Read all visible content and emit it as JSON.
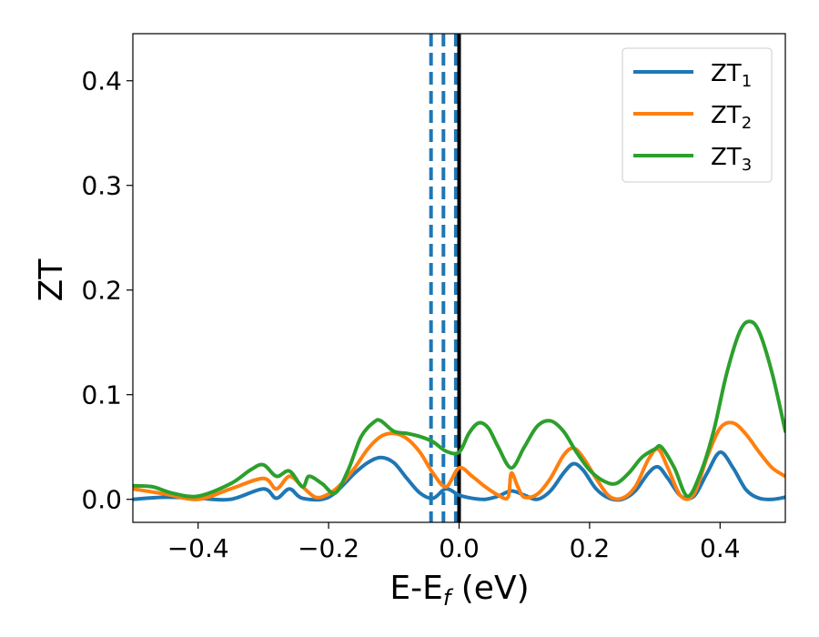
{
  "chart_data": {
    "type": "line",
    "title": "",
    "xlabel": {
      "main": "E-E",
      "sub": "f",
      "tail": " (eV)"
    },
    "ylabel": "ZT",
    "xlim": [
      -0.5,
      0.5
    ],
    "ylim": [
      -0.022,
      0.445
    ],
    "x_ticks": [
      -0.4,
      -0.2,
      0.0,
      0.2,
      0.4
    ],
    "x_tick_labels": [
      "−0.4",
      "−0.2",
      "0.0",
      "0.2",
      "0.4"
    ],
    "y_ticks": [
      0.0,
      0.1,
      0.2,
      0.3,
      0.4
    ],
    "y_tick_labels": [
      "0.0",
      "0.1",
      "0.2",
      "0.3",
      "0.4"
    ],
    "grid": false,
    "legend_position": "top-right",
    "vlines": [
      {
        "x": -0.043,
        "style": "dashed",
        "color": "#1f77b4"
      },
      {
        "x": -0.024,
        "style": "dashed",
        "color": "#1f77b4"
      },
      {
        "x": -0.005,
        "style": "dashed",
        "color": "#1f77b4"
      },
      {
        "x": 0.0,
        "style": "solid",
        "color": "#000000"
      }
    ],
    "series": [
      {
        "name": "ZT",
        "sub": "1",
        "color": "#1f77b4",
        "x": [
          -0.5,
          -0.45,
          -0.4,
          -0.35,
          -0.3,
          -0.28,
          -0.26,
          -0.24,
          -0.2,
          -0.16,
          -0.14,
          -0.12,
          -0.1,
          -0.08,
          -0.06,
          -0.04,
          -0.02,
          0.0,
          0.02,
          0.04,
          0.06,
          0.08,
          0.1,
          0.12,
          0.14,
          0.16,
          0.175,
          0.19,
          0.21,
          0.23,
          0.25,
          0.27,
          0.29,
          0.305,
          0.32,
          0.34,
          0.36,
          0.38,
          0.4,
          0.42,
          0.44,
          0.46,
          0.48,
          0.5
        ],
        "y": [
          0.0,
          0.002,
          0.001,
          0.0,
          0.01,
          0.001,
          0.01,
          0.001,
          0.002,
          0.025,
          0.035,
          0.04,
          0.035,
          0.02,
          0.006,
          0.001,
          0.01,
          0.004,
          0.001,
          0.0,
          0.003,
          0.008,
          0.004,
          0.0,
          0.008,
          0.025,
          0.034,
          0.028,
          0.01,
          0.001,
          0.0,
          0.008,
          0.025,
          0.031,
          0.02,
          0.003,
          0.003,
          0.025,
          0.045,
          0.03,
          0.009,
          0.001,
          0.0,
          0.002
        ]
      },
      {
        "name": "ZT",
        "sub": "2",
        "color": "#ff7f0e",
        "x": [
          -0.5,
          -0.45,
          -0.4,
          -0.35,
          -0.3,
          -0.28,
          -0.26,
          -0.24,
          -0.22,
          -0.2,
          -0.18,
          -0.16,
          -0.14,
          -0.12,
          -0.1,
          -0.08,
          -0.06,
          -0.04,
          -0.02,
          0.0,
          0.02,
          0.04,
          0.06,
          0.075,
          0.08,
          0.09,
          0.1,
          0.12,
          0.14,
          0.16,
          0.175,
          0.19,
          0.21,
          0.23,
          0.25,
          0.27,
          0.29,
          0.305,
          0.32,
          0.34,
          0.36,
          0.38,
          0.4,
          0.42,
          0.44,
          0.46,
          0.48,
          0.5
        ],
        "y": [
          0.01,
          0.005,
          0.0,
          0.01,
          0.02,
          0.01,
          0.022,
          0.012,
          0.002,
          0.005,
          0.015,
          0.03,
          0.048,
          0.06,
          0.063,
          0.058,
          0.045,
          0.025,
          0.012,
          0.03,
          0.022,
          0.012,
          0.004,
          0.002,
          0.025,
          0.012,
          0.002,
          0.005,
          0.02,
          0.042,
          0.049,
          0.04,
          0.02,
          0.003,
          0.001,
          0.012,
          0.038,
          0.048,
          0.03,
          0.003,
          0.005,
          0.04,
          0.068,
          0.073,
          0.062,
          0.045,
          0.03,
          0.022
        ]
      },
      {
        "name": "ZT",
        "sub": "3",
        "color": "#2ca02c",
        "x": [
          -0.5,
          -0.47,
          -0.44,
          -0.4,
          -0.35,
          -0.32,
          -0.3,
          -0.28,
          -0.26,
          -0.24,
          -0.23,
          -0.21,
          -0.19,
          -0.17,
          -0.15,
          -0.13,
          -0.12,
          -0.1,
          -0.08,
          -0.06,
          -0.04,
          -0.02,
          0.0,
          0.015,
          0.03,
          0.045,
          0.06,
          0.08,
          0.1,
          0.12,
          0.14,
          0.16,
          0.18,
          0.2,
          0.22,
          0.24,
          0.26,
          0.28,
          0.3,
          0.31,
          0.33,
          0.35,
          0.37,
          0.39,
          0.41,
          0.43,
          0.445,
          0.46,
          0.48,
          0.5
        ],
        "y": [
          0.013,
          0.012,
          0.006,
          0.003,
          0.015,
          0.028,
          0.033,
          0.022,
          0.027,
          0.012,
          0.022,
          0.015,
          0.006,
          0.028,
          0.06,
          0.074,
          0.075,
          0.065,
          0.063,
          0.06,
          0.055,
          0.046,
          0.045,
          0.063,
          0.073,
          0.068,
          0.05,
          0.03,
          0.05,
          0.07,
          0.075,
          0.065,
          0.045,
          0.028,
          0.018,
          0.015,
          0.025,
          0.04,
          0.048,
          0.05,
          0.03,
          0.003,
          0.025,
          0.065,
          0.12,
          0.16,
          0.17,
          0.16,
          0.12,
          0.065
        ]
      }
    ]
  }
}
